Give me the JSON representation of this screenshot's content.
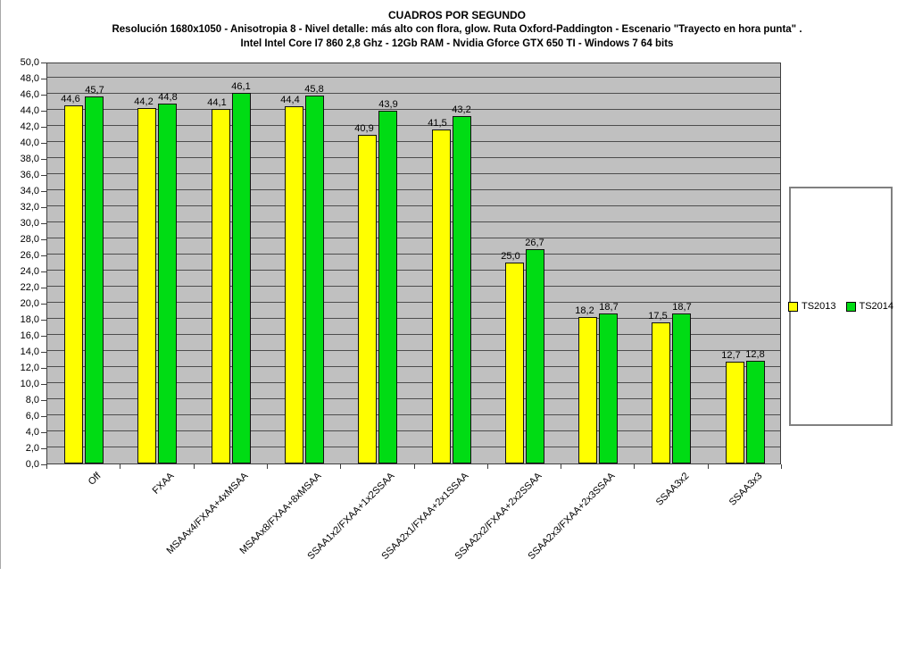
{
  "chart_data": {
    "type": "bar",
    "title": "CUADROS POR SEGUNDO",
    "subtitle1": "Resolución 1680x1050 - Anisotropia 8 - Nivel detalle: más alto con flora, glow. Ruta Oxford-Paddington - Escenario \"Trayecto en hora punta\" .",
    "subtitle2": "Intel Intel Core I7 860 2,8 Ghz - 12Gb RAM - Nvidia Gforce GTX 650 TI - Windows 7 64 bits",
    "categories": [
      "Off",
      "FXAA",
      "MSAAx4/FXAA+4xMSAA",
      "MSAAx8/FXAA+8xMSAA",
      "SSAA1x2/FXAA+1x2SSAA",
      "SSAA2x1/FXAA+2x1SSAA",
      "SSAA2x2/FXAA+2x2SSAA",
      "SSAA2x3/FXAA+2x3SSAA",
      "SSAA3x2",
      "SSAA3x3"
    ],
    "series": [
      {
        "name": "TS2013",
        "color": "#FFFF00",
        "values": [
          44.6,
          44.2,
          44.1,
          44.4,
          40.9,
          41.5,
          25.0,
          18.2,
          17.5,
          12.7
        ]
      },
      {
        "name": "TS2014",
        "color": "#00DC14",
        "values": [
          45.7,
          44.8,
          46.1,
          45.8,
          43.9,
          43.2,
          26.7,
          18.7,
          18.7,
          12.8
        ]
      }
    ],
    "ylabel": "",
    "xlabel": "",
    "ylim": [
      0,
      50
    ],
    "ytick_step": 2,
    "decimal_separator": ",",
    "grid": true,
    "legend_position": "right",
    "plot_bg": "#C0C0C0",
    "gridline_color": "#4d4d4d"
  }
}
